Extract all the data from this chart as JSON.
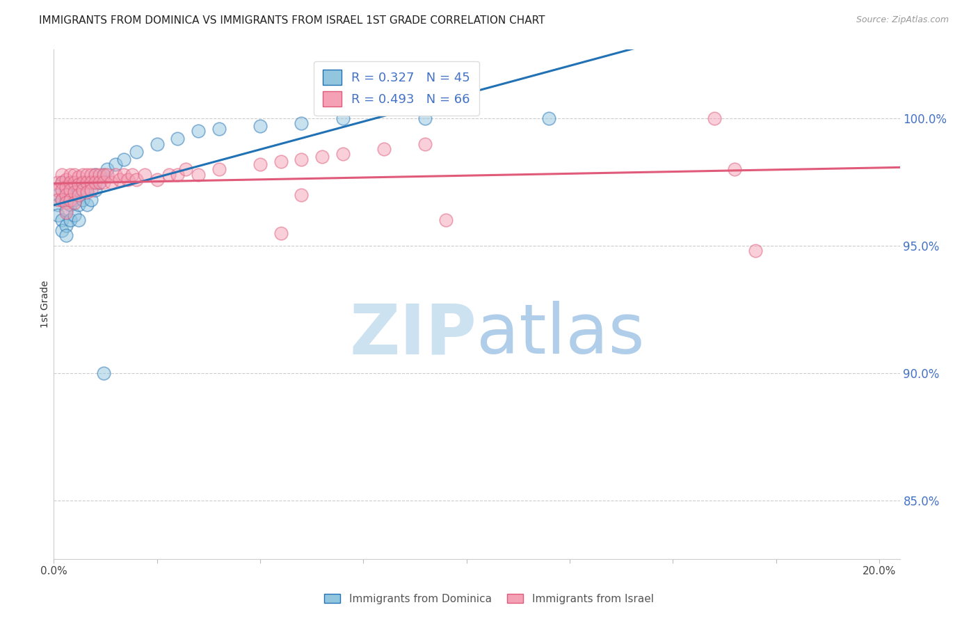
{
  "title": "IMMIGRANTS FROM DOMINICA VS IMMIGRANTS FROM ISRAEL 1ST GRADE CORRELATION CHART",
  "source": "Source: ZipAtlas.com",
  "ylabel": "1st Grade",
  "r_dominica": 0.327,
  "n_dominica": 45,
  "r_israel": 0.493,
  "n_israel": 66,
  "color_dominica": "#92c5de",
  "color_israel": "#f4a0b5",
  "trendline_dominica": "#2171b5",
  "trendline_israel": "#e05a7a",
  "right_yticks": [
    85.0,
    90.0,
    95.0,
    100.0
  ],
  "watermark_zip": "ZIP",
  "watermark_atlas": "atlas",
  "xlim": [
    0.0,
    0.205
  ],
  "ylim": [
    0.827,
    1.027
  ],
  "dominica_x": [
    0.001,
    0.001,
    0.001,
    0.002,
    0.002,
    0.002,
    0.002,
    0.003,
    0.003,
    0.003,
    0.003,
    0.003,
    0.004,
    0.004,
    0.004,
    0.005,
    0.005,
    0.005,
    0.006,
    0.006,
    0.006,
    0.007,
    0.007,
    0.008,
    0.008,
    0.009,
    0.009,
    0.01,
    0.01,
    0.011,
    0.012,
    0.013,
    0.015,
    0.017,
    0.02,
    0.025,
    0.03,
    0.035,
    0.04,
    0.05,
    0.06,
    0.07,
    0.09,
    0.12,
    0.012
  ],
  "dominica_y": [
    0.97,
    0.966,
    0.962,
    0.975,
    0.968,
    0.96,
    0.956,
    0.972,
    0.968,
    0.964,
    0.958,
    0.954,
    0.97,
    0.966,
    0.96,
    0.974,
    0.968,
    0.962,
    0.972,
    0.966,
    0.96,
    0.975,
    0.968,
    0.972,
    0.966,
    0.975,
    0.968,
    0.978,
    0.972,
    0.975,
    0.978,
    0.98,
    0.982,
    0.984,
    0.987,
    0.99,
    0.992,
    0.995,
    0.996,
    0.997,
    0.998,
    1.0,
    1.0,
    1.0,
    0.9
  ],
  "israel_x": [
    0.001,
    0.001,
    0.001,
    0.002,
    0.002,
    0.002,
    0.002,
    0.003,
    0.003,
    0.003,
    0.003,
    0.003,
    0.004,
    0.004,
    0.004,
    0.004,
    0.005,
    0.005,
    0.005,
    0.005,
    0.006,
    0.006,
    0.006,
    0.007,
    0.007,
    0.007,
    0.008,
    0.008,
    0.008,
    0.009,
    0.009,
    0.009,
    0.01,
    0.01,
    0.011,
    0.011,
    0.012,
    0.012,
    0.013,
    0.014,
    0.015,
    0.016,
    0.017,
    0.018,
    0.019,
    0.02,
    0.022,
    0.025,
    0.028,
    0.03,
    0.032,
    0.035,
    0.04,
    0.05,
    0.055,
    0.06,
    0.065,
    0.07,
    0.08,
    0.09,
    0.095,
    0.16,
    0.165,
    0.055,
    0.06,
    0.17
  ],
  "israel_y": [
    0.975,
    0.972,
    0.968,
    0.978,
    0.975,
    0.972,
    0.968,
    0.976,
    0.973,
    0.97,
    0.967,
    0.963,
    0.978,
    0.975,
    0.972,
    0.968,
    0.978,
    0.975,
    0.971,
    0.967,
    0.977,
    0.974,
    0.97,
    0.978,
    0.975,
    0.972,
    0.978,
    0.975,
    0.971,
    0.978,
    0.975,
    0.972,
    0.978,
    0.975,
    0.978,
    0.975,
    0.978,
    0.975,
    0.978,
    0.975,
    0.978,
    0.976,
    0.978,
    0.976,
    0.978,
    0.976,
    0.978,
    0.976,
    0.978,
    0.978,
    0.98,
    0.978,
    0.98,
    0.982,
    0.983,
    0.984,
    0.985,
    0.986,
    0.988,
    0.99,
    0.96,
    1.0,
    0.98,
    0.955,
    0.97,
    0.948
  ]
}
